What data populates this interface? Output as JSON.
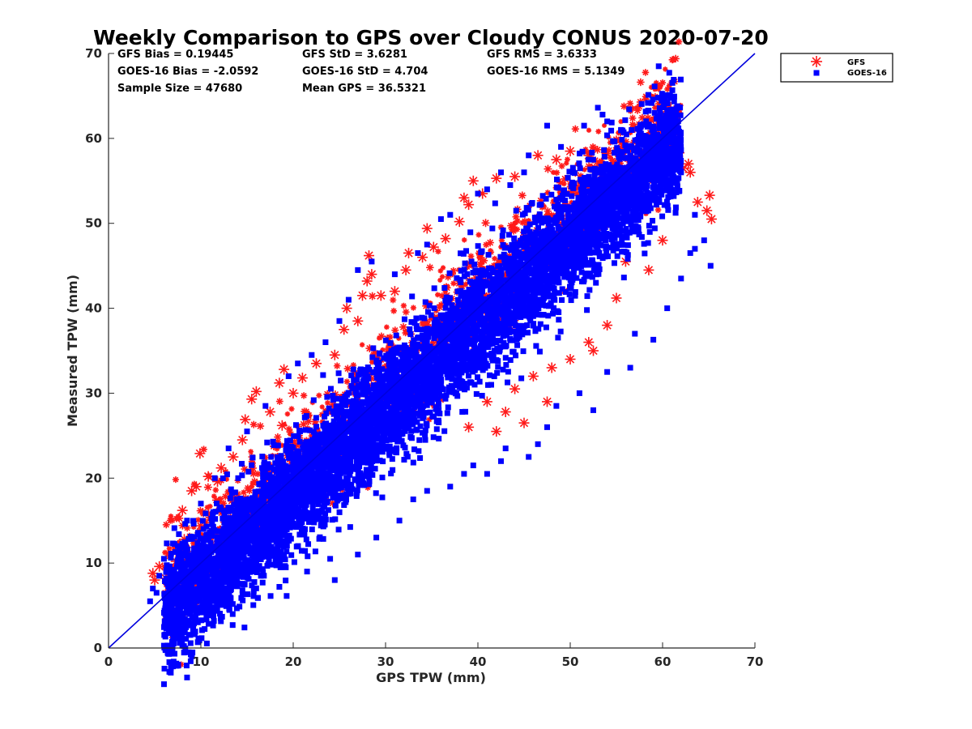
{
  "chart_data": {
    "type": "scatter",
    "title": "Weekly Comparison to GPS over Cloudy CONUS 2020-07-20",
    "xlabel": "GPS TPW (mm)",
    "ylabel": "Measured TPW (mm)",
    "xlim": [
      0,
      70
    ],
    "ylim": [
      0,
      70
    ],
    "xticks": [
      "0",
      "10",
      "20",
      "30",
      "40",
      "50",
      "60",
      "70"
    ],
    "yticks": [
      "0",
      "10",
      "20",
      "30",
      "40",
      "50",
      "60",
      "70"
    ],
    "grid": false,
    "legend": "outside-top-right",
    "stats": [
      [
        "GFS Bias = 0.19445",
        "GFS StD = 3.6281",
        "GFS RMS = 3.6333"
      ],
      [
        "GOES-16 Bias = -2.0592",
        "GOES-16 StD = 4.704",
        "GOES-16 RMS = 5.1349"
      ],
      [
        "Sample Size = 47680",
        "Mean GPS = 36.5321"
      ]
    ],
    "reference_line": {
      "x": [
        0,
        70
      ],
      "y": [
        0,
        70
      ],
      "color": "#0000dd"
    },
    "series": [
      {
        "name": "GFS",
        "marker": "asterisk",
        "color": "#ff1a1a",
        "points": [
          [
            4.8,
            8.8
          ],
          [
            5.5,
            9.6
          ],
          [
            6.2,
            8.2
          ],
          [
            7.3,
            10.2
          ],
          [
            8.0,
            16.2
          ],
          [
            8.2,
            12.8
          ],
          [
            9.0,
            18.5
          ],
          [
            9.9,
            22.9
          ],
          [
            10.8,
            20.2
          ],
          [
            11.8,
            19.6
          ],
          [
            12.2,
            21.2
          ],
          [
            13.5,
            22.5
          ],
          [
            14.5,
            24.5
          ],
          [
            14.8,
            26.9
          ],
          [
            15.5,
            29.3
          ],
          [
            16.0,
            30.2
          ],
          [
            17.5,
            27.8
          ],
          [
            18.5,
            31.2
          ],
          [
            19.0,
            32.8
          ],
          [
            20.0,
            30.0
          ],
          [
            21.0,
            31.8
          ],
          [
            22.5,
            33.5
          ],
          [
            24.5,
            34.5
          ],
          [
            25.5,
            37.5
          ],
          [
            25.8,
            40.0
          ],
          [
            27.0,
            38.5
          ],
          [
            27.5,
            41.5
          ],
          [
            28.0,
            43.2
          ],
          [
            28.5,
            44.0
          ],
          [
            28.2,
            46.2
          ],
          [
            29.5,
            41.5
          ],
          [
            31.0,
            42.0
          ],
          [
            32.5,
            46.5
          ],
          [
            32.2,
            44.5
          ],
          [
            34.0,
            46.0
          ],
          [
            34.5,
            49.4
          ],
          [
            35.2,
            47.2
          ],
          [
            36.5,
            48.2
          ],
          [
            38.0,
            50.2
          ],
          [
            38.5,
            53.0
          ],
          [
            39.0,
            52.2
          ],
          [
            39.5,
            55.0
          ],
          [
            40.5,
            53.5
          ],
          [
            42.0,
            55.3
          ],
          [
            44.0,
            55.5
          ],
          [
            46.5,
            58.0
          ],
          [
            48.5,
            57.5
          ],
          [
            50.0,
            58.5
          ],
          [
            52.0,
            58.0
          ],
          [
            54.0,
            58.2
          ],
          [
            55.5,
            59.5
          ],
          [
            56.5,
            58.8
          ],
          [
            58.5,
            59.2
          ],
          [
            59.8,
            61.6
          ],
          [
            61.2,
            60.8
          ],
          [
            61.8,
            58.3
          ],
          [
            62.2,
            56.5
          ],
          [
            62.8,
            57.0
          ],
          [
            63.0,
            56.0
          ],
          [
            63.8,
            52.5
          ],
          [
            64.8,
            51.5
          ],
          [
            65.1,
            53.3
          ],
          [
            65.3,
            50.5
          ],
          [
            60.5,
            55.0
          ],
          [
            60.0,
            48.0
          ],
          [
            58.5,
            44.5
          ],
          [
            56.0,
            45.5
          ],
          [
            55.0,
            41.2
          ],
          [
            54.0,
            38.0
          ],
          [
            52.5,
            35.0
          ],
          [
            52.0,
            36.0
          ],
          [
            50.0,
            34.0
          ],
          [
            47.5,
            29.0
          ],
          [
            45.0,
            26.5
          ],
          [
            42.0,
            25.5
          ],
          [
            41.0,
            29.0
          ],
          [
            44.0,
            30.5
          ],
          [
            46.0,
            32.0
          ],
          [
            48.0,
            33.0
          ],
          [
            43.0,
            27.8
          ],
          [
            39.0,
            26.0
          ],
          [
            18.8,
            26.2
          ],
          [
            12.0,
            17.2
          ],
          [
            9.5,
            19.0
          ],
          [
            8.5,
            11.0
          ],
          [
            6.5,
            9.2
          ],
          [
            5.0,
            8.0
          ]
        ]
      },
      {
        "name": "GOES-16",
        "marker": "square",
        "color": "#0000ff",
        "points": [
          [
            4.5,
            5.5
          ],
          [
            5.2,
            6.5
          ],
          [
            6.2,
            4.5
          ],
          [
            6.8,
            5.2
          ],
          [
            7.5,
            6.2
          ],
          [
            8.5,
            4.8
          ],
          [
            9.0,
            6.0
          ],
          [
            10.5,
            5.5
          ],
          [
            11.5,
            6.2
          ],
          [
            13.5,
            7.5
          ],
          [
            14.5,
            6.8
          ],
          [
            16.5,
            8.5
          ],
          [
            18.5,
            7.2
          ],
          [
            19.2,
            9.5
          ],
          [
            21.5,
            9.0
          ],
          [
            24.0,
            10.5
          ],
          [
            24.5,
            8.0
          ],
          [
            27.0,
            11.0
          ],
          [
            29.0,
            13.0
          ],
          [
            31.5,
            15.0
          ],
          [
            33.0,
            17.5
          ],
          [
            34.5,
            18.5
          ],
          [
            37.0,
            19.0
          ],
          [
            38.5,
            20.5
          ],
          [
            39.5,
            21.5
          ],
          [
            41.0,
            20.5
          ],
          [
            42.5,
            22.0
          ],
          [
            43.0,
            23.5
          ],
          [
            45.5,
            22.5
          ],
          [
            46.5,
            24.0
          ],
          [
            47.5,
            26.0
          ],
          [
            48.5,
            28.5
          ],
          [
            51.0,
            30.0
          ],
          [
            52.5,
            28.0
          ],
          [
            54.0,
            32.5
          ],
          [
            56.5,
            33.0
          ],
          [
            57.0,
            37.0
          ],
          [
            59.0,
            36.3
          ],
          [
            60.5,
            40.0
          ],
          [
            62.0,
            43.5
          ],
          [
            63.0,
            46.5
          ],
          [
            63.5,
            47.0
          ],
          [
            65.2,
            45.0
          ],
          [
            64.5,
            48.0
          ],
          [
            63.5,
            51.0
          ],
          [
            62.0,
            56.0
          ],
          [
            61.5,
            60.0
          ],
          [
            58.5,
            58.0
          ],
          [
            55.5,
            61.0
          ],
          [
            54.0,
            62.0
          ],
          [
            53.5,
            62.8
          ],
          [
            51.5,
            61.5
          ],
          [
            49.0,
            59.0
          ],
          [
            47.5,
            61.5
          ],
          [
            45.5,
            58.0
          ],
          [
            45.0,
            56.0
          ],
          [
            43.5,
            54.5
          ],
          [
            42.5,
            56.0
          ],
          [
            41.0,
            54.0
          ],
          [
            40.0,
            53.5
          ],
          [
            37.0,
            51.0
          ],
          [
            36.0,
            50.5
          ],
          [
            34.5,
            47.5
          ],
          [
            33.5,
            46.5
          ],
          [
            31.0,
            44.0
          ],
          [
            28.5,
            45.5
          ],
          [
            27.0,
            44.5
          ],
          [
            26.0,
            41.0
          ],
          [
            25.0,
            38.5
          ],
          [
            23.5,
            36.0
          ],
          [
            22.0,
            34.5
          ],
          [
            20.5,
            33.5
          ],
          [
            19.5,
            32.0
          ],
          [
            17.0,
            28.5
          ],
          [
            15.0,
            25.5
          ],
          [
            13.0,
            23.5
          ],
          [
            11.5,
            20.0
          ],
          [
            10.0,
            17.0
          ],
          [
            8.5,
            15.0
          ],
          [
            7.5,
            12.0
          ],
          [
            6.0,
            10.5
          ],
          [
            5.5,
            8.5
          ],
          [
            4.8,
            7.0
          ],
          [
            36.0,
            31.0
          ],
          [
            44.0,
            44.0
          ],
          [
            50.0,
            50.0
          ],
          [
            30.0,
            30.0
          ],
          [
            25.0,
            25.0
          ],
          [
            20.0,
            20.0
          ],
          [
            15.0,
            15.0
          ],
          [
            55.0,
            52.0
          ],
          [
            58.0,
            55.0
          ]
        ]
      }
    ]
  }
}
